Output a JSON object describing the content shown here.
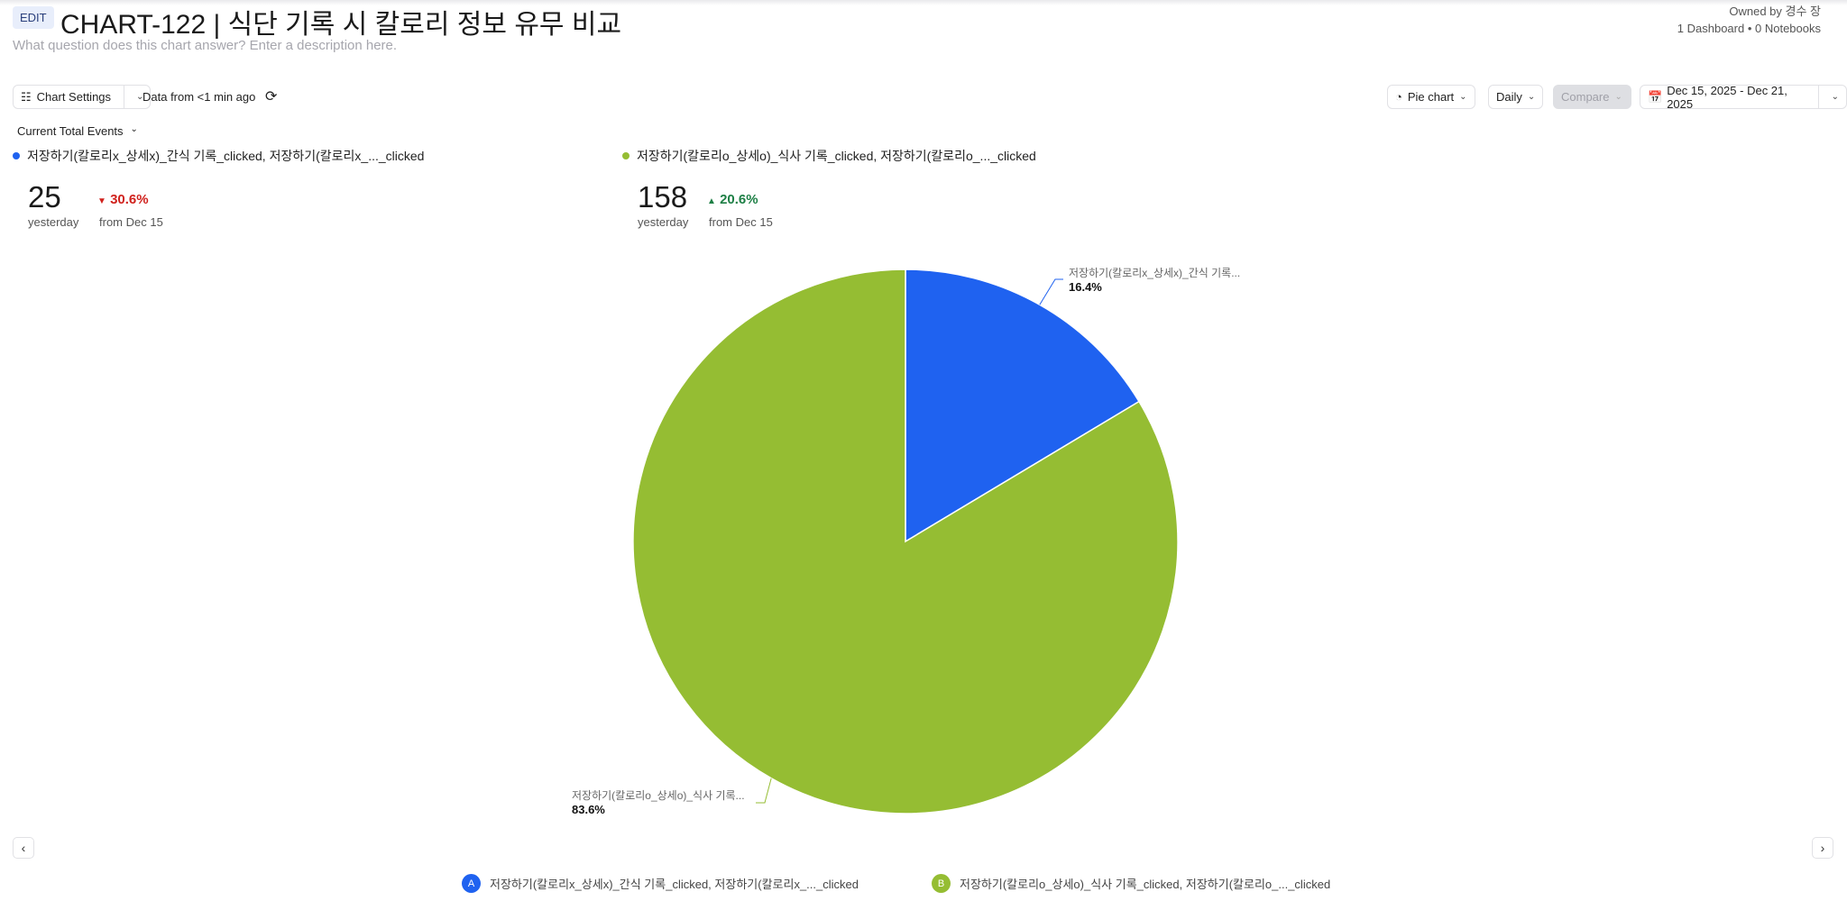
{
  "header": {
    "edit_label": "EDIT",
    "title": "CHART-122 | 식단 기록 시 칼로리 정보 유무 비교",
    "description_placeholder": "What question does this chart answer? Enter a description here.",
    "owner": "Owned by 경수 장",
    "usage": "1 Dashboard • 0 Notebooks"
  },
  "toolbar": {
    "chart_settings": "Chart Settings",
    "data_freshness": "Data from <1 min ago",
    "chart_type": "Pie chart",
    "interval": "Daily",
    "compare": "Compare",
    "date_range": "Dec 15, 2025 - Dec 21, 2025",
    "metric": "Current Total Events"
  },
  "series": [
    {
      "name": "저장하기(칼로리x_상세x)_간식 기록_clicked, 저장하기(칼로리x_..._clicked",
      "short_name": "저장하기(칼로리x_상세x)_간식 기록...",
      "value": "25",
      "value_caption": "yesterday",
      "delta": "30.6%",
      "delta_direction": "down",
      "delta_caption": "from Dec 15",
      "color": "#1f62f0",
      "badge": "A"
    },
    {
      "name": "저장하기(칼로리o_상세o)_식사 기록_clicked, 저장하기(칼로리o_..._clicked",
      "short_name": "저장하기(칼로리o_상세o)_식사 기록...",
      "value": "158",
      "value_caption": "yesterday",
      "delta": "20.6%",
      "delta_direction": "up",
      "delta_caption": "from Dec 15",
      "color": "#95bd33",
      "badge": "B"
    }
  ],
  "colors": {
    "down": "#d0211c",
    "up": "#1d7f45"
  },
  "chart_data": {
    "type": "pie",
    "slices": [
      {
        "label": "저장하기(칼로리x_상세x)_간식 기록...",
        "percent": 16.4,
        "percent_label": "16.4%",
        "color": "#1f62f0"
      },
      {
        "label": "저장하기(칼로리o_상세o)_식사 기록...",
        "percent": 83.6,
        "percent_label": "83.6%",
        "color": "#95bd33"
      }
    ]
  }
}
